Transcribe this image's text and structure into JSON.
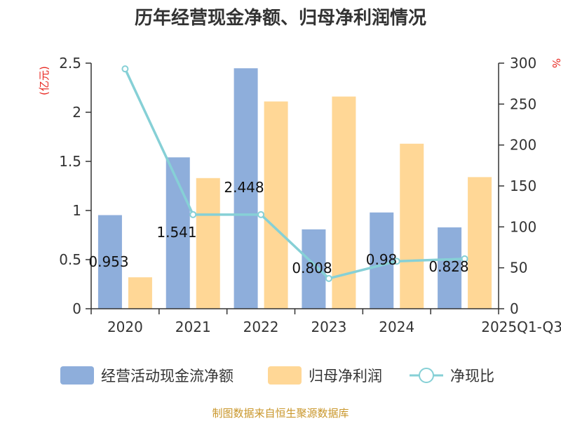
{
  "colors": {
    "cash_flow": "#8eaedb",
    "net_profit": "#ffd796",
    "ratio": "#86d0d6",
    "axis": "#333333",
    "left_unit": "#e8261f",
    "right_unit": "#e8261f",
    "source": "#c9962a"
  },
  "source": "制图数据来自恒生聚源数据库",
  "chart_data": {
    "type": "bar",
    "title": "历年经营现金净额、归母净利润情况",
    "categories": [
      "2020",
      "2021",
      "2022",
      "2023",
      "2024",
      "2025Q1-Q3"
    ],
    "series": [
      {
        "name": "经营活动现金流净额",
        "type": "bar",
        "axis": "left",
        "values": [
          0.953,
          1.541,
          2.448,
          0.808,
          0.98,
          0.828
        ],
        "data_labels": [
          "0.953",
          "1.541",
          "2.448",
          "0.808",
          "0.98",
          "0.828"
        ]
      },
      {
        "name": "归母净利润",
        "type": "bar",
        "axis": "left",
        "values": [
          0.32,
          1.33,
          2.11,
          2.16,
          1.68,
          1.34
        ]
      },
      {
        "name": "净现比",
        "type": "line",
        "axis": "right",
        "values": [
          293,
          115,
          115,
          37,
          58,
          61
        ]
      }
    ],
    "y_left": {
      "unit": "(亿元)",
      "lim": [
        0,
        2.5
      ],
      "ticks": [
        "0",
        "0.5",
        "1",
        "1.5",
        "2",
        "2.5"
      ]
    },
    "y_right": {
      "unit": "%",
      "lim": [
        0,
        300
      ],
      "ticks": [
        "0",
        "50",
        "100",
        "150",
        "200",
        "250",
        "300"
      ]
    },
    "legend_position": "bottom"
  }
}
